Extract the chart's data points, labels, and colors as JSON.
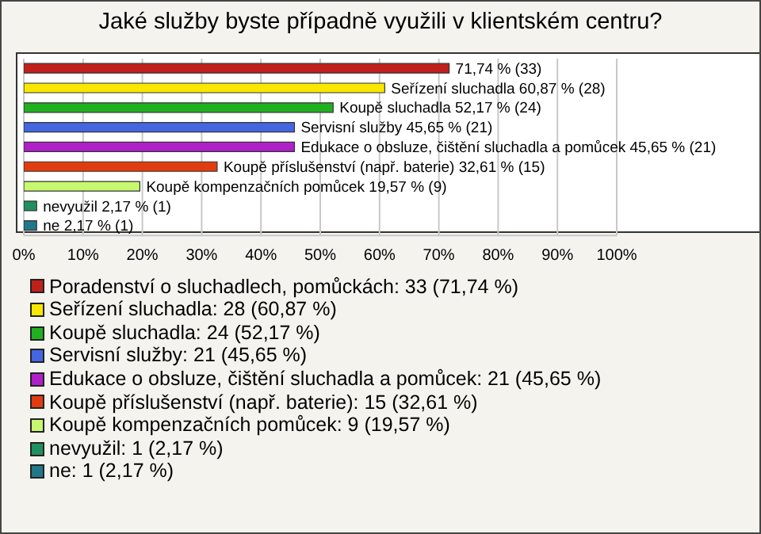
{
  "chart_data": {
    "type": "bar",
    "orientation": "horizontal",
    "stacked": true,
    "title": "Jaké služby byste případně využili v klientském centru?",
    "categories": [
      null,
      null,
      null,
      null,
      null,
      null,
      null,
      null,
      null
    ],
    "series": [
      {
        "name": "Poradenství o sluchadlech, pomůckách: 33 (71,74 %)",
        "color": "#c0201a",
        "values": [
          71.74,
          null,
          null,
          null,
          null,
          null,
          null,
          null,
          null
        ],
        "value_labels": [
          "71,74 % (33)",
          null,
          null,
          null,
          null,
          null,
          null,
          null,
          null
        ]
      },
      {
        "name": "Seřízení sluchadla: 28 (60,87 %)",
        "color": "#f8e800",
        "values": [
          null,
          60.87,
          null,
          null,
          null,
          null,
          null,
          null,
          null
        ],
        "value_labels": [
          null,
          "Seřízení sluchadla 60,87 % (28)",
          null,
          null,
          null,
          null,
          null,
          null,
          null
        ]
      },
      {
        "name": "Koupě sluchadla: 24 (52,17 %)",
        "color": "#20b020",
        "values": [
          null,
          null,
          52.17,
          null,
          null,
          null,
          null,
          null,
          null
        ],
        "value_labels": [
          null,
          null,
          "Koupě sluchadla 52,17 % (24)",
          null,
          null,
          null,
          null,
          null,
          null
        ]
      },
      {
        "name": "Servisní služby: 21 (45,65 %)",
        "color": "#4466e0",
        "values": [
          null,
          null,
          null,
          45.65,
          null,
          null,
          null,
          null,
          null
        ],
        "value_labels": [
          null,
          null,
          null,
          "Servisní služby 45,65 % (21)",
          null,
          null,
          null,
          null,
          null
        ]
      },
      {
        "name": "Edukace o obsluze, čištění sluchadla a pomůcek: 21 (45,65 %)",
        "color": "#b020c8",
        "values": [
          null,
          null,
          null,
          null,
          45.65,
          null,
          null,
          null,
          null
        ],
        "value_labels": [
          null,
          null,
          null,
          null,
          "Edukace o obsluze, čištění sluchadla a pomůcek 45,65 % (21)",
          null,
          null,
          null,
          null
        ]
      },
      {
        "name": "Koupě příslušenství (např. baterie): 15 (32,61 %)",
        "color": "#e03c10",
        "values": [
          null,
          null,
          null,
          null,
          null,
          32.61,
          null,
          null,
          null
        ],
        "value_labels": [
          null,
          null,
          null,
          null,
          null,
          "Koupě příslušenství (např. baterie) 32,61 % (15)",
          null,
          null,
          null
        ]
      },
      {
        "name": "Koupě kompenzačních pomůcek: 9 (19,57 %)",
        "color": "#c8f870",
        "values": [
          null,
          null,
          null,
          null,
          null,
          null,
          19.57,
          null,
          null
        ],
        "value_labels": [
          null,
          null,
          null,
          null,
          null,
          null,
          "Koupě kompenzačních pomůcek 19,57 % (9)",
          null,
          null
        ]
      },
      {
        "name": "nevyužil: 1 (2,17 %)",
        "color": "#209060",
        "values": [
          null,
          null,
          null,
          null,
          null,
          null,
          null,
          2.17,
          null
        ],
        "value_labels": [
          null,
          null,
          null,
          null,
          null,
          null,
          null,
          "nevyužil 2,17 % (1)",
          null
        ]
      },
      {
        "name": "ne: 1 (2,17 %)",
        "color": "#207888",
        "values": [
          null,
          null,
          null,
          null,
          null,
          null,
          null,
          null,
          2.17
        ],
        "value_labels": [
          null,
          null,
          null,
          null,
          null,
          null,
          null,
          null,
          "ne 2,17 % (1)"
        ]
      }
    ],
    "xlim": [
      0,
      100
    ],
    "xticks": [
      {
        "value": 0,
        "label": "0%"
      },
      {
        "value": 10,
        "label": "10%"
      },
      {
        "value": 20,
        "label": "20%"
      },
      {
        "value": 30,
        "label": "30%"
      },
      {
        "value": 40,
        "label": "40%"
      },
      {
        "value": 50,
        "label": "50%"
      },
      {
        "value": 60,
        "label": "60%"
      },
      {
        "value": 70,
        "label": "70%"
      },
      {
        "value": 80,
        "label": "80%"
      },
      {
        "value": 90,
        "label": "90%"
      },
      {
        "value": 100,
        "label": "100%"
      }
    ],
    "grid": "x",
    "legend": "bottom",
    "tick_labels": "x"
  }
}
